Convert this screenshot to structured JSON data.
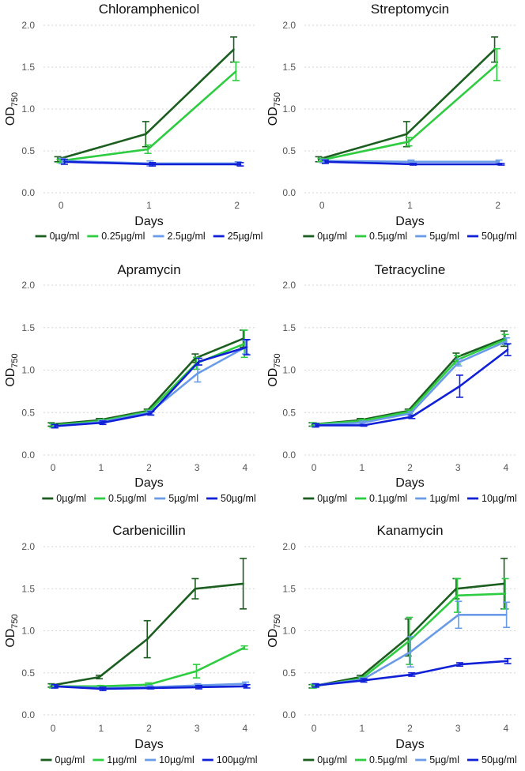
{
  "figure": {
    "ylabel_main": "OD",
    "ylabel_sub": "750"
  },
  "chart_data": [
    {
      "type": "line",
      "title": "Chloramphenicol",
      "xlabel": "Days",
      "ylabel": "OD750",
      "x": [
        0,
        1,
        2
      ],
      "xlim": [
        -0.2,
        2.2
      ],
      "ylim": [
        0,
        2.0
      ],
      "yticks": [
        "0.0",
        "0.5",
        "1.0",
        "1.5",
        "2.0"
      ],
      "legend_position": "bottom",
      "series": [
        {
          "name": "0µg/ml",
          "color": "#1b5e20",
          "values": [
            0.4,
            0.7,
            1.71
          ],
          "errors": [
            0.03,
            0.15,
            0.15
          ]
        },
        {
          "name": "0.25µg/ml",
          "color": "#2ecc40",
          "values": [
            0.38,
            0.52,
            1.45
          ],
          "errors": [
            0.02,
            0.05,
            0.11
          ]
        },
        {
          "name": "2.5µg/ml",
          "color": "#6a9be8",
          "values": [
            0.38,
            0.35,
            0.35
          ],
          "errors": [
            0.03,
            0.03,
            0.02
          ]
        },
        {
          "name": "25µg/ml",
          "color": "#1020d6",
          "values": [
            0.37,
            0.34,
            0.34
          ],
          "errors": [
            0.03,
            0.02,
            0.02
          ]
        }
      ]
    },
    {
      "type": "line",
      "title": "Streptomycin",
      "xlabel": "Days",
      "ylabel": "OD750",
      "x": [
        0,
        1,
        2
      ],
      "xlim": [
        -0.2,
        2.2
      ],
      "ylim": [
        0,
        2.0
      ],
      "yticks": [
        "0.0",
        "0.5",
        "1.0",
        "1.5",
        "2.0"
      ],
      "legend_position": "bottom",
      "series": [
        {
          "name": "0µg/ml",
          "color": "#1b5e20",
          "values": [
            0.4,
            0.7,
            1.71
          ],
          "errors": [
            0.03,
            0.15,
            0.15
          ]
        },
        {
          "name": "0.5µg/ml",
          "color": "#2ecc40",
          "values": [
            0.39,
            0.61,
            1.53
          ],
          "errors": [
            0.02,
            0.05,
            0.19
          ]
        },
        {
          "name": "5µg/ml",
          "color": "#6a9be8",
          "values": [
            0.38,
            0.37,
            0.37
          ],
          "errors": [
            0.02,
            0.02,
            0.02
          ]
        },
        {
          "name": "50µg/ml",
          "color": "#1020d6",
          "values": [
            0.37,
            0.34,
            0.34
          ],
          "errors": [
            0.02,
            0.01,
            0.01
          ]
        }
      ]
    },
    {
      "type": "line",
      "title": "Apramycin",
      "xlabel": "Days",
      "ylabel": "OD750",
      "x": [
        0,
        1,
        2,
        3,
        4
      ],
      "xlim": [
        -0.2,
        4.2
      ],
      "ylim": [
        0,
        2.0
      ],
      "yticks": [
        "0.0",
        "0.5",
        "1.0",
        "1.5",
        "2.0"
      ],
      "legend_position": "bottom",
      "series": [
        {
          "name": "0µg/ml",
          "color": "#1b5e20",
          "values": [
            0.36,
            0.41,
            0.52,
            1.14,
            1.37
          ],
          "errors": [
            0.02,
            0.02,
            0.02,
            0.05,
            0.1
          ]
        },
        {
          "name": "0.5µg/ml",
          "color": "#2ecc40",
          "values": [
            0.35,
            0.4,
            0.51,
            1.08,
            1.31
          ],
          "errors": [
            0.02,
            0.02,
            0.02,
            0.07,
            0.16
          ]
        },
        {
          "name": "5µg/ml",
          "color": "#6a9be8",
          "values": [
            0.34,
            0.39,
            0.5,
            0.96,
            1.27
          ],
          "errors": [
            0.02,
            0.02,
            0.02,
            0.1,
            0.08
          ]
        },
        {
          "name": "50µg/ml",
          "color": "#1020d6",
          "values": [
            0.34,
            0.38,
            0.49,
            1.1,
            1.27
          ],
          "errors": [
            0.02,
            0.02,
            0.02,
            0.04,
            0.09
          ]
        }
      ]
    },
    {
      "type": "line",
      "title": "Tetracycline",
      "xlabel": "Days",
      "ylabel": "OD750",
      "x": [
        0,
        1,
        2,
        3,
        4
      ],
      "xlim": [
        -0.2,
        4.2
      ],
      "ylim": [
        0,
        2.0
      ],
      "yticks": [
        "0.0",
        "0.5",
        "1.0",
        "1.5",
        "2.0"
      ],
      "legend_position": "bottom",
      "series": [
        {
          "name": "0µg/ml",
          "color": "#1b5e20",
          "values": [
            0.36,
            0.41,
            0.52,
            1.15,
            1.37
          ],
          "errors": [
            0.02,
            0.02,
            0.02,
            0.05,
            0.09
          ]
        },
        {
          "name": "0.1µg/ml",
          "color": "#2ecc40",
          "values": [
            0.36,
            0.4,
            0.51,
            1.12,
            1.36
          ],
          "errors": [
            0.02,
            0.02,
            0.02,
            0.05,
            0.06
          ]
        },
        {
          "name": "1µg/ml",
          "color": "#6a9be8",
          "values": [
            0.35,
            0.38,
            0.49,
            1.09,
            1.34
          ],
          "errors": [
            0.02,
            0.02,
            0.02,
            0.04,
            0.04
          ]
        },
        {
          "name": "10µg/ml",
          "color": "#1020d6",
          "values": [
            0.35,
            0.35,
            0.45,
            0.81,
            1.24
          ],
          "errors": [
            0.02,
            0.01,
            0.02,
            0.13,
            0.07
          ]
        }
      ]
    },
    {
      "type": "line",
      "title": "Carbenicillin",
      "xlabel": "Days",
      "ylabel": "OD750",
      "x": [
        0,
        1,
        2,
        3,
        4
      ],
      "xlim": [
        -0.2,
        4.2
      ],
      "ylim": [
        0,
        2.0
      ],
      "yticks": [
        "0.0",
        "0.5",
        "1.0",
        "1.5",
        "2.0"
      ],
      "legend_position": "bottom",
      "series": [
        {
          "name": "0µg/ml",
          "color": "#1b5e20",
          "values": [
            0.35,
            0.45,
            0.9,
            1.5,
            1.56
          ],
          "errors": [
            0.02,
            0.02,
            0.22,
            0.12,
            0.3
          ]
        },
        {
          "name": "1µg/ml",
          "color": "#2ecc40",
          "values": [
            0.34,
            0.34,
            0.36,
            0.52,
            0.8
          ],
          "errors": [
            0.02,
            0.01,
            0.02,
            0.08,
            0.02
          ]
        },
        {
          "name": "10µg/ml",
          "color": "#6a9be8",
          "values": [
            0.34,
            0.32,
            0.33,
            0.35,
            0.37
          ],
          "errors": [
            0.02,
            0.01,
            0.02,
            0.02,
            0.02
          ]
        },
        {
          "name": "100µg/ml",
          "color": "#1020d6",
          "values": [
            0.34,
            0.31,
            0.32,
            0.33,
            0.34
          ],
          "errors": [
            0.02,
            0.02,
            0.01,
            0.02,
            0.02
          ]
        }
      ]
    },
    {
      "type": "line",
      "title": "Kanamycin",
      "xlabel": "Days",
      "ylabel": "OD750",
      "x": [
        0,
        1,
        2,
        3,
        4
      ],
      "xlim": [
        -0.2,
        4.2
      ],
      "ylim": [
        0,
        2.0
      ],
      "yticks": [
        "0.0",
        "0.5",
        "1.0",
        "1.5",
        "2.0"
      ],
      "legend_position": "bottom",
      "series": [
        {
          "name": "0µg/ml",
          "color": "#1b5e20",
          "values": [
            0.34,
            0.45,
            0.92,
            1.5,
            1.56
          ],
          "errors": [
            0.02,
            0.02,
            0.22,
            0.12,
            0.3
          ]
        },
        {
          "name": "0.5µg/ml",
          "color": "#2ecc40",
          "values": [
            0.34,
            0.43,
            0.88,
            1.42,
            1.44
          ],
          "errors": [
            0.02,
            0.02,
            0.28,
            0.2,
            0.18
          ]
        },
        {
          "name": "5µg/ml",
          "color": "#6a9be8",
          "values": [
            0.35,
            0.42,
            0.75,
            1.19,
            1.19
          ],
          "errors": [
            0.02,
            0.02,
            0.18,
            0.16,
            0.15
          ]
        },
        {
          "name": "50µg/ml",
          "color": "#1020d6",
          "values": [
            0.35,
            0.41,
            0.48,
            0.6,
            0.64
          ],
          "errors": [
            0.02,
            0.02,
            0.02,
            0.02,
            0.03
          ]
        }
      ]
    }
  ]
}
